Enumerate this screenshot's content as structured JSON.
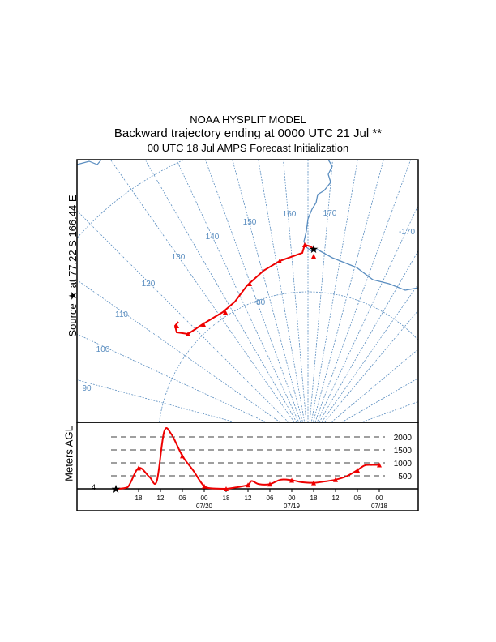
{
  "title": {
    "line1": "NOAA HYSPLIT MODEL",
    "line2": "Backward trajectory ending at 0000 UTC 21 Jul **",
    "line3": "00 UTC 18 Jul    AMPS  Forecast Initialization"
  },
  "source_label": "Source ★ at   77.22 S  166.44 E",
  "profile_ylabel": "Meters AGL",
  "start_height_label": "4",
  "colors": {
    "trajectory": "#ee0000",
    "map": "#5b8ec0"
  },
  "chart_data": [
    {
      "type": "map",
      "meridian_labels": [
        "90",
        "100",
        "110",
        "120",
        "130",
        "140",
        "150",
        "160",
        "170",
        "-170"
      ],
      "parallel_labels": [
        "-80"
      ],
      "source": {
        "lat": -77.22,
        "lon": 166.44
      }
    },
    {
      "type": "line",
      "xlabel": "",
      "ylabel": "Meters AGL",
      "hours_back": [
        0,
        3,
        6,
        9,
        11,
        13,
        15,
        18,
        21,
        24,
        27,
        30,
        33,
        36,
        37,
        39,
        42,
        45,
        48,
        51,
        54,
        57,
        60,
        63,
        66,
        68,
        70,
        72
      ],
      "heights": [
        0,
        60,
        800,
        450,
        300,
        2200,
        2100,
        1270,
        700,
        100,
        10,
        0,
        60,
        150,
        300,
        180,
        180,
        350,
        330,
        250,
        230,
        280,
        350,
        480,
        720,
        900,
        920,
        920
      ],
      "ylim": [
        0,
        2500
      ],
      "gridlines": [
        500,
        1000,
        1500,
        2000
      ],
      "gridline_labels": [
        "500",
        "1000",
        "1500",
        "2000"
      ],
      "x_tick_labels": [
        "18",
        "12",
        "06",
        "00",
        "18",
        "12",
        "06",
        "00",
        "18",
        "12",
        "06",
        "00"
      ],
      "date_labels": [
        "07/20",
        "07/19",
        "07/18"
      ]
    }
  ]
}
